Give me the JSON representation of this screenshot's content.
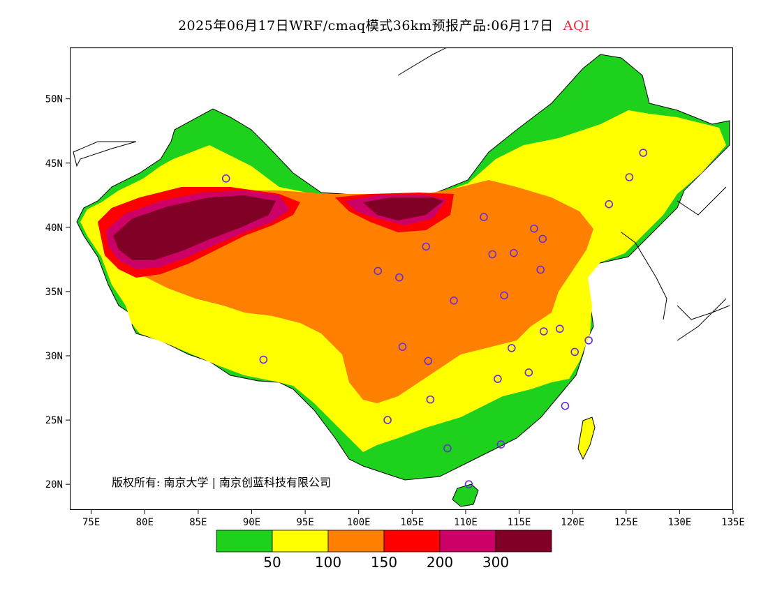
{
  "title": {
    "text": "2025年06月17日WRF/cmaq模式36km预报产品:06月17日",
    "variable": "AQI",
    "variable_color": "#e0303a"
  },
  "map": {
    "lon_range": [
      73,
      135
    ],
    "lat_range": [
      18,
      54
    ],
    "lat_ticks": [
      {
        "value": 50,
        "label": "50N"
      },
      {
        "value": 45,
        "label": "45N"
      },
      {
        "value": 40,
        "label": "40N"
      },
      {
        "value": 35,
        "label": "35N"
      },
      {
        "value": 30,
        "label": "30N"
      },
      {
        "value": 25,
        "label": "25N"
      },
      {
        "value": 20,
        "label": "20N"
      }
    ],
    "lon_ticks": [
      {
        "value": 75,
        "label": "75E"
      },
      {
        "value": 80,
        "label": "80E"
      },
      {
        "value": 85,
        "label": "85E"
      },
      {
        "value": 90,
        "label": "90E"
      },
      {
        "value": 95,
        "label": "95E"
      },
      {
        "value": 100,
        "label": "100E"
      },
      {
        "value": 105,
        "label": "105E"
      },
      {
        "value": 110,
        "label": "110E"
      },
      {
        "value": 115,
        "label": "115E"
      },
      {
        "value": 120,
        "label": "120E"
      },
      {
        "value": 125,
        "label": "125E"
      },
      {
        "value": 130,
        "label": "130E"
      },
      {
        "value": 135,
        "label": "135E"
      }
    ],
    "copyright": "版权所有: 南京大学 | 南京创蓝科技有限公司"
  },
  "legend": {
    "colors": [
      "#1dd11d",
      "#ffff00",
      "#ff8000",
      "#ff0000",
      "#cc0066",
      "#800026"
    ],
    "labels": [
      "50",
      "100",
      "150",
      "200",
      "300"
    ]
  },
  "cities": [
    {
      "lon": 87.6,
      "lat": 43.8
    },
    {
      "lon": 91.1,
      "lat": 29.7
    },
    {
      "lon": 101.8,
      "lat": 36.6
    },
    {
      "lon": 103.8,
      "lat": 36.1
    },
    {
      "lon": 106.3,
      "lat": 38.5
    },
    {
      "lon": 111.7,
      "lat": 40.8
    },
    {
      "lon": 112.5,
      "lat": 37.9
    },
    {
      "lon": 114.5,
      "lat": 38.0
    },
    {
      "lon": 116.4,
      "lat": 39.9
    },
    {
      "lon": 117.2,
      "lat": 39.1
    },
    {
      "lon": 117.0,
      "lat": 36.7
    },
    {
      "lon": 113.6,
      "lat": 34.7
    },
    {
      "lon": 108.9,
      "lat": 34.3
    },
    {
      "lon": 104.1,
      "lat": 30.7
    },
    {
      "lon": 106.5,
      "lat": 29.6
    },
    {
      "lon": 106.7,
      "lat": 26.6
    },
    {
      "lon": 102.7,
      "lat": 25.0
    },
    {
      "lon": 108.3,
      "lat": 22.8
    },
    {
      "lon": 113.3,
      "lat": 23.1
    },
    {
      "lon": 110.3,
      "lat": 20.0
    },
    {
      "lon": 119.3,
      "lat": 26.1
    },
    {
      "lon": 115.9,
      "lat": 28.7
    },
    {
      "lon": 113.0,
      "lat": 28.2
    },
    {
      "lon": 114.3,
      "lat": 30.6
    },
    {
      "lon": 117.3,
      "lat": 31.9
    },
    {
      "lon": 118.8,
      "lat": 32.1
    },
    {
      "lon": 120.2,
      "lat": 30.3
    },
    {
      "lon": 121.5,
      "lat": 31.2
    },
    {
      "lon": 123.4,
      "lat": 41.8
    },
    {
      "lon": 125.3,
      "lat": 43.9
    },
    {
      "lon": 126.6,
      "lat": 45.8
    }
  ]
}
